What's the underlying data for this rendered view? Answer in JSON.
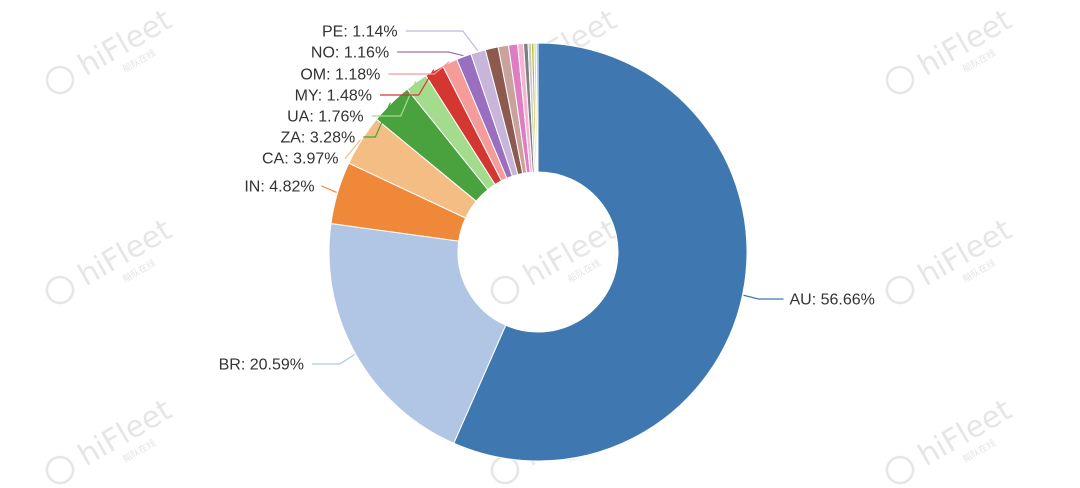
{
  "watermark": {
    "brand": "hiFleet",
    "sub": "船队在线"
  },
  "chart_data": {
    "type": "pie",
    "title": "",
    "donut": true,
    "slices": [
      {
        "label": "AU",
        "value": 56.66,
        "text": "AU: 56.66%",
        "color": "#3f78b0",
        "show_label": true
      },
      {
        "label": "BR",
        "value": 20.59,
        "text": "BR: 20.59%",
        "color": "#b1c6e5",
        "show_label": true
      },
      {
        "label": "IN",
        "value": 4.82,
        "text": "IN: 4.82%",
        "color": "#ef8838",
        "show_label": true
      },
      {
        "label": "CA",
        "value": 3.97,
        "text": "CA: 3.97%",
        "color": "#f4bd84",
        "show_label": true
      },
      {
        "label": "ZA",
        "value": 3.28,
        "text": "ZA: 3.28%",
        "color": "#4aa23f",
        "show_label": true
      },
      {
        "label": "UA",
        "value": 1.76,
        "text": "UA: 1.76%",
        "color": "#a4dc8e",
        "show_label": true
      },
      {
        "label": "MY",
        "value": 1.48,
        "text": "MY: 1.48%",
        "color": "#d43731",
        "show_label": true
      },
      {
        "label": "OM",
        "value": 1.18,
        "text": "OM: 1.18%",
        "color": "#f39c99",
        "show_label": true
      },
      {
        "label": "NO",
        "value": 1.16,
        "text": "NO: 1.16%",
        "color": "#9b6fc0",
        "show_label": true
      },
      {
        "label": "PE",
        "value": 1.14,
        "text": "PE: 1.14%",
        "color": "#c7b6d9",
        "show_label": true
      },
      {
        "label": "",
        "value": 1.0,
        "text": "",
        "color": "#8c5a4e",
        "show_label": false
      },
      {
        "label": "",
        "value": 0.8,
        "text": "",
        "color": "#c9a39b",
        "show_label": false
      },
      {
        "label": "",
        "value": 0.7,
        "text": "",
        "color": "#de7dc2",
        "show_label": false
      },
      {
        "label": "",
        "value": 0.45,
        "text": "",
        "color": "#f4b4d2",
        "show_label": false
      },
      {
        "label": "",
        "value": 0.35,
        "text": "",
        "color": "#7f7f7f",
        "show_label": false
      },
      {
        "label": "",
        "value": 0.25,
        "text": "",
        "color": "#c8c8c8",
        "show_label": false
      },
      {
        "label": "",
        "value": 0.2,
        "text": "",
        "color": "#bcbd3a",
        "show_label": false
      },
      {
        "label": "",
        "value": 0.18,
        "text": "",
        "color": "#dbdc8c",
        "show_label": false
      },
      {
        "label": "",
        "value": 0.13,
        "text": "",
        "color": "#25bdd0",
        "show_label": false
      }
    ]
  }
}
